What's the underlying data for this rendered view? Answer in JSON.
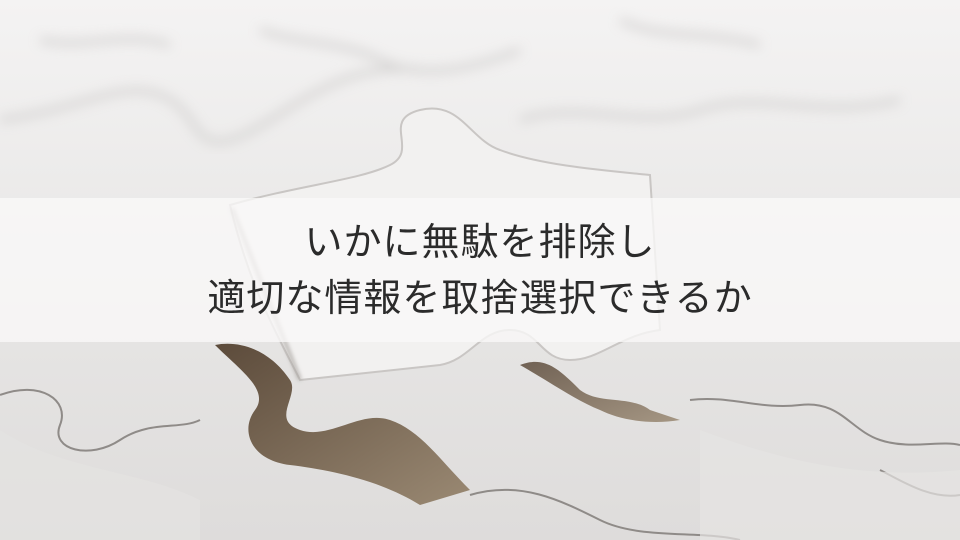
{
  "caption": {
    "line1": "いかに無駄を排除し",
    "line2": "適切な情報を取捨選択できるか"
  },
  "photo": {
    "subject": "jigsaw-puzzle",
    "background_color": "#ecebeb",
    "gap_color": "#8a7a66"
  }
}
